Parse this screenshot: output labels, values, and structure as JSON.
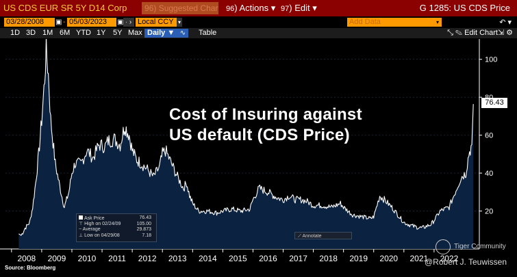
{
  "header": {
    "ticker": "US CDS EUR SR 5Y D14 Corp",
    "suggested": "Suggested Charts",
    "suggested_num": "96",
    "actions_num": "96",
    "actions": "Actions",
    "edit_num": "97",
    "edit": "Edit",
    "function_title": "G 1285: US CDS Price"
  },
  "toolbar": {
    "start_date": "03/28/2008",
    "end_date": "05/03/2023",
    "currency": "Local CCY",
    "add_data_placeholder": "Add Data",
    "ranges": [
      "1D",
      "3D",
      "1M",
      "6M",
      "YTD",
      "1Y",
      "5Y",
      "Max"
    ],
    "frequency": "Daily ▼",
    "table_label": "Table",
    "edit_chart": "Edit Chart"
  },
  "overlay": {
    "title_line1": "Cost of Insuring against",
    "title_line2": "US default (CDS Price)"
  },
  "legend": {
    "ask_label": "Ask Price",
    "ask_value": "76.43",
    "high_label": "High on 02/24/09",
    "high_value": "105.00",
    "avg_label": "Average",
    "avg_value": "29.873",
    "low_label": "Low on 04/29/08",
    "low_value": "7.18",
    "annotate": "Annotate"
  },
  "footer": {
    "source": "Source: Bloomberg",
    "watermark_community": "Tiger Community",
    "watermark_author": "@Robert J. Teuwissen"
  },
  "chart_data": {
    "type": "area",
    "title": "Cost of Insuring against US default (CDS Price)",
    "series": [
      {
        "name": "Ask Price",
        "last": 76.43,
        "points": [
          [
            2008.24,
            8
          ],
          [
            2008.32,
            7.18
          ],
          [
            2008.45,
            11
          ],
          [
            2008.6,
            14
          ],
          [
            2008.7,
            22
          ],
          [
            2008.8,
            35
          ],
          [
            2008.9,
            50
          ],
          [
            2009.0,
            68
          ],
          [
            2009.1,
            90
          ],
          [
            2009.15,
            105
          ],
          [
            2009.22,
            92
          ],
          [
            2009.3,
            68
          ],
          [
            2009.45,
            45
          ],
          [
            2009.6,
            33
          ],
          [
            2009.75,
            22
          ],
          [
            2009.9,
            30
          ],
          [
            2010.0,
            40
          ],
          [
            2010.1,
            45
          ],
          [
            2010.3,
            45
          ],
          [
            2010.5,
            52
          ],
          [
            2010.7,
            48
          ],
          [
            2010.9,
            55
          ],
          [
            2011.1,
            54
          ],
          [
            2011.2,
            57
          ],
          [
            2011.4,
            58
          ],
          [
            2011.6,
            55
          ],
          [
            2011.75,
            65
          ],
          [
            2011.9,
            60
          ],
          [
            2012.0,
            52
          ],
          [
            2012.15,
            47
          ],
          [
            2012.3,
            45
          ],
          [
            2012.5,
            42
          ],
          [
            2012.7,
            38
          ],
          [
            2012.9,
            43
          ],
          [
            2013.0,
            50
          ],
          [
            2013.1,
            52
          ],
          [
            2013.3,
            45
          ],
          [
            2013.5,
            38
          ],
          [
            2013.7,
            32
          ],
          [
            2013.8,
            35
          ],
          [
            2013.9,
            28
          ],
          [
            2014.0,
            24
          ],
          [
            2014.2,
            20
          ],
          [
            2014.5,
            20
          ],
          [
            2014.8,
            19
          ],
          [
            2015.0,
            20
          ],
          [
            2015.3,
            21
          ],
          [
            2015.6,
            20
          ],
          [
            2015.9,
            21
          ],
          [
            2016.0,
            26
          ],
          [
            2016.2,
            32
          ],
          [
            2016.5,
            30
          ],
          [
            2016.8,
            27
          ],
          [
            2017.0,
            26
          ],
          [
            2017.2,
            28
          ],
          [
            2017.4,
            26
          ],
          [
            2017.6,
            26
          ],
          [
            2017.8,
            25
          ],
          [
            2018.0,
            23
          ],
          [
            2018.3,
            23
          ],
          [
            2018.6,
            22
          ],
          [
            2018.9,
            24
          ],
          [
            2019.0,
            22
          ],
          [
            2019.3,
            18
          ],
          [
            2019.6,
            17
          ],
          [
            2019.9,
            16
          ],
          [
            2020.0,
            17
          ],
          [
            2020.2,
            28
          ],
          [
            2020.35,
            26
          ],
          [
            2020.6,
            22
          ],
          [
            2020.9,
            16
          ],
          [
            2021.0,
            14
          ],
          [
            2021.3,
            12
          ],
          [
            2021.6,
            11
          ],
          [
            2021.9,
            13
          ],
          [
            2022.0,
            15
          ],
          [
            2022.2,
            20
          ],
          [
            2022.5,
            22
          ],
          [
            2022.7,
            30
          ],
          [
            2022.9,
            38
          ],
          [
            2023.05,
            40
          ],
          [
            2023.15,
            50
          ],
          [
            2023.25,
            55
          ],
          [
            2023.3,
            76.43
          ]
        ]
      }
    ],
    "x_ticks": [
      "2008",
      "2009",
      "2010",
      "2011",
      "2012",
      "2013",
      "2014",
      "2015",
      "2016",
      "2017",
      "2018",
      "2019",
      "2020",
      "2021",
      "2022"
    ],
    "y_ticks": [
      "20",
      "40",
      "60",
      "80",
      "100"
    ],
    "xlim": [
      2007.8,
      2023.5
    ],
    "ylim": [
      0,
      110
    ],
    "colors": {
      "line": "#ffffff",
      "fill": "#0b2240",
      "grid": "#2b3a55",
      "background": "#000000"
    }
  }
}
